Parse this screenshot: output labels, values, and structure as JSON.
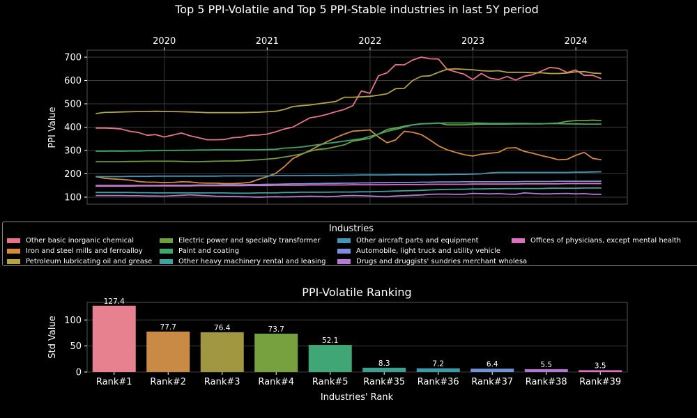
{
  "chart_data": [
    {
      "type": "line",
      "title": "Top 5 PPI-Volatile and Top 5 PPI-Stable industries in last 5Y period",
      "xlabel": "",
      "ylabel": "PPI Value",
      "x_ticks": [
        "2020",
        "2021",
        "2022",
        "2023",
        "2024"
      ],
      "y_ticks": [
        100,
        200,
        300,
        400,
        500,
        600,
        700
      ],
      "ylim": [
        70,
        730
      ],
      "x_range": [
        2019.25,
        2024.5
      ],
      "x_start": 2019.333,
      "x_step": 0.0833,
      "grid": true,
      "series": [
        {
          "name": "Other basic inorganic chemical",
          "color": "#e8728a",
          "values": [
            396,
            396,
            395,
            392,
            382,
            377,
            365,
            368,
            358,
            366,
            375,
            363,
            355,
            346,
            346,
            347,
            355,
            357,
            365,
            366,
            370,
            380,
            392,
            400,
            420,
            440,
            446,
            455,
            466,
            476,
            492,
            555,
            545,
            620,
            633,
            668,
            667,
            688,
            700,
            693,
            692,
            648,
            637,
            627,
            604,
            630,
            610,
            604,
            617,
            602,
            618,
            625,
            640,
            656,
            652,
            634,
            645,
            622,
            622,
            608
          ]
        },
        {
          "name": "Iron and steel mills and ferroalloy",
          "color": "#d68a3c",
          "values": [
            188,
            181,
            178,
            176,
            173,
            167,
            164,
            164,
            162,
            163,
            166,
            165,
            161,
            160,
            160,
            158,
            158,
            160,
            163,
            176,
            188,
            202,
            230,
            265,
            283,
            300,
            320,
            338,
            355,
            370,
            383,
            385,
            388,
            358,
            333,
            345,
            382,
            378,
            368,
            345,
            320,
            303,
            292,
            282,
            276,
            284,
            288,
            292,
            310,
            312,
            296,
            288,
            278,
            270,
            260,
            262,
            279,
            292,
            266,
            260
          ]
        },
        {
          "name": "Petroleum lubricating oil and grease",
          "color": "#b5a240",
          "values": [
            458,
            463,
            464,
            465,
            466,
            467,
            467,
            468,
            467,
            467,
            466,
            465,
            464,
            462,
            462,
            462,
            462,
            462,
            463,
            464,
            466,
            468,
            476,
            488,
            492,
            495,
            500,
            505,
            510,
            528,
            528,
            530,
            532,
            537,
            543,
            565,
            566,
            600,
            618,
            620,
            635,
            648,
            650,
            648,
            646,
            642,
            640,
            642,
            635,
            635,
            635,
            633,
            633,
            630,
            630,
            632,
            637,
            638,
            632,
            630
          ]
        },
        {
          "name": "Electric power and specialty transformer",
          "color": "#6ea03c",
          "values": [
            252,
            252,
            252,
            252,
            253,
            253,
            254,
            254,
            254,
            254,
            253,
            252,
            252,
            253,
            254,
            255,
            255,
            256,
            258,
            260,
            263,
            266,
            272,
            278,
            285,
            297,
            305,
            308,
            316,
            324,
            340,
            346,
            352,
            370,
            390,
            396,
            404,
            410,
            415,
            416,
            418,
            410,
            410,
            410,
            412,
            413,
            413,
            413,
            413,
            414,
            414,
            414,
            414,
            416,
            418,
            425,
            428,
            428,
            430,
            428
          ]
        },
        {
          "name": "Paint and coating",
          "color": "#3ea86a",
          "values": [
            297,
            297,
            298,
            297,
            298,
            298,
            299,
            299,
            300,
            300,
            301,
            301,
            302,
            302,
            303,
            303,
            303,
            303,
            303,
            303,
            304,
            305,
            310,
            312,
            315,
            320,
            325,
            330,
            335,
            340,
            345,
            350,
            360,
            370,
            382,
            390,
            400,
            410,
            414,
            415,
            417,
            418,
            418,
            418,
            418,
            417,
            416,
            416,
            416,
            416,
            416,
            415,
            415,
            415,
            415,
            414,
            414,
            413,
            413,
            413
          ]
        },
        {
          "name": "Other heavy machinery rental and leasing",
          "color": "#3fa39d",
          "values": [
            120,
            120,
            120,
            120,
            120,
            119,
            119,
            118,
            118,
            118,
            118,
            118,
            118,
            118,
            118,
            118,
            117,
            117,
            117,
            118,
            118,
            118,
            120,
            120,
            121,
            121,
            121,
            121,
            122,
            122,
            122,
            123,
            123,
            124,
            125,
            126,
            127,
            128,
            129,
            131,
            132,
            133,
            134,
            134,
            135,
            135,
            136,
            136,
            137,
            137,
            137,
            137,
            137,
            138,
            138,
            138,
            138,
            139,
            139,
            139
          ]
        },
        {
          "name": "Other aircraft parts and equipment",
          "color": "#3f98b8",
          "values": [
            188,
            188,
            188,
            188,
            189,
            189,
            189,
            190,
            190,
            190,
            190,
            190,
            190,
            190,
            190,
            191,
            191,
            191,
            191,
            191,
            191,
            192,
            192,
            192,
            192,
            193,
            193,
            193,
            193,
            194,
            194,
            195,
            195,
            195,
            195,
            196,
            196,
            196,
            196,
            196,
            197,
            197,
            198,
            198,
            199,
            200,
            204,
            206,
            206,
            206,
            206,
            206,
            206,
            206,
            206,
            206,
            207,
            207,
            208,
            209
          ]
        },
        {
          "name": "Automobile, light truck and utility vehicle",
          "color": "#7b8ee0",
          "values": [
            150,
            150,
            150,
            150,
            150,
            150,
            150,
            150,
            151,
            151,
            151,
            151,
            152,
            152,
            152,
            153,
            153,
            153,
            154,
            154,
            155,
            155,
            156,
            157,
            157,
            158,
            158,
            159,
            159,
            160,
            160,
            161,
            161,
            162,
            162,
            163,
            163,
            163,
            164,
            164,
            165,
            165,
            165,
            166,
            166,
            166,
            166,
            166,
            166,
            166,
            167,
            167,
            167,
            167,
            168,
            168,
            168,
            168,
            168,
            168
          ]
        },
        {
          "name": "Drugs and druggists' sundries merchant wholesalers",
          "color": "#b67ad8",
          "values": [
            107,
            107,
            107,
            107,
            106,
            106,
            105,
            105,
            104,
            106,
            108,
            110,
            108,
            106,
            104,
            103,
            103,
            102,
            101,
            100,
            101,
            102,
            101,
            102,
            103,
            104,
            103,
            102,
            103,
            106,
            107,
            106,
            105,
            103,
            102,
            105,
            106,
            108,
            109,
            112,
            113,
            113,
            112,
            112,
            116,
            115,
            114,
            115,
            113,
            112,
            118,
            116,
            114,
            114,
            115,
            116,
            114,
            115,
            112,
            112
          ]
        },
        {
          "name": "Offices of physicians, except mental health",
          "color": "#e06fc0",
          "values": [
            147,
            147,
            147,
            147,
            147,
            148,
            148,
            148,
            148,
            148,
            148,
            148,
            149,
            149,
            149,
            149,
            149,
            149,
            150,
            150,
            150,
            151,
            151,
            151,
            151,
            152,
            152,
            152,
            152,
            152,
            153,
            153,
            153,
            153,
            153,
            154,
            154,
            154,
            154,
            155,
            155,
            155,
            155,
            155,
            156,
            156,
            156,
            156,
            156,
            156,
            157,
            157,
            157,
            157,
            157,
            158,
            158,
            158,
            158,
            158
          ]
        }
      ],
      "legend": {
        "title": "Industries",
        "labels": [
          "Other basic inorganic chemical",
          "Iron and steel mills and ferroalloy",
          "Petroleum lubricating oil and grease",
          "Electric power and specialty transformer",
          "Paint and coating",
          "Other heavy machinery rental and leasing",
          "Other aircraft parts and equipment",
          "Automobile, light truck and utility vehicle",
          "Drugs and druggists' sundries merchant wholesa",
          "Offices of physicians, except mental health"
        ],
        "placement": "below-center"
      }
    },
    {
      "type": "bar",
      "title": "PPI-Volatile Ranking",
      "xlabel": "Industries' Rank",
      "ylabel": "Std Value",
      "categories": [
        "Rank#1",
        "Rank#2",
        "Rank#3",
        "Rank#4",
        "Rank#5",
        "Rank#35",
        "Rank#36",
        "Rank#37",
        "Rank#38",
        "Rank#39"
      ],
      "values": [
        127.4,
        77.7,
        76.4,
        73.7,
        52.1,
        8.3,
        7.2,
        6.4,
        5.5,
        3.5
      ],
      "value_labels": [
        "127.4",
        "77.7",
        "76.4",
        "73.7",
        "52.1",
        "8.3",
        "7.2",
        "6.4",
        "5.5",
        "3.5"
      ],
      "colors": [
        "#e8818f",
        "#c98a45",
        "#a19642",
        "#77a03e",
        "#40a676",
        "#3e9e8d",
        "#3b9aa6",
        "#6f93d6",
        "#b078d1",
        "#de72bf"
      ],
      "y_ticks": [
        0,
        50,
        100
      ],
      "ylim": [
        0,
        133.8
      ],
      "grid": true
    }
  ]
}
